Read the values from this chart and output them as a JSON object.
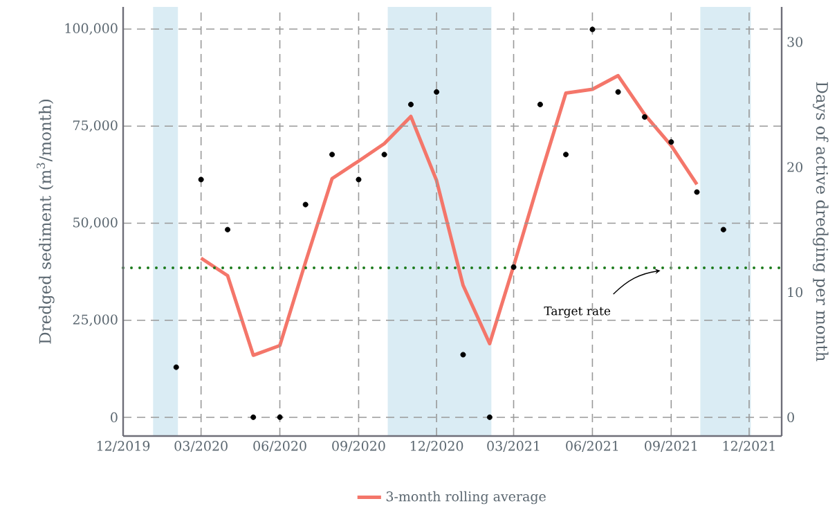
{
  "chart_data": {
    "type": "line",
    "ylabel": "Dredged sediment (m$^{3}$/month)",
    "y2label": "Days of active dredging per month",
    "xlim": [
      "2019-12-01",
      "2022-01-08"
    ],
    "xticks": [
      {
        "value": "2019-12",
        "label": "12/2019"
      },
      {
        "value": "2020-03",
        "label": "03/2020"
      },
      {
        "value": "2020-06",
        "label": "06/2020"
      },
      {
        "value": "2020-09",
        "label": "09/2020"
      },
      {
        "value": "2020-12",
        "label": "12/2020"
      },
      {
        "value": "2021-03",
        "label": "03/2021"
      },
      {
        "value": "2021-06",
        "label": "06/2021"
      },
      {
        "value": "2021-09",
        "label": "09/2021"
      },
      {
        "value": "2021-12",
        "label": "12/2021"
      }
    ],
    "ylim": [
      -4800,
      105700
    ],
    "yticks": [
      0,
      {
        "value": 25000,
        "label": "25,000"
      },
      {
        "value": 50000,
        "label": "50,000"
      },
      {
        "value": 75000,
        "label": "75,000"
      },
      {
        "value": 100000,
        "label": "100,000"
      }
    ],
    "y2lim": [
      -1.5,
      32.8
    ],
    "y2ticks": [
      0,
      10,
      20,
      30
    ],
    "series": [
      {
        "name": "3-month rolling average",
        "color": "#f4766a",
        "x": [
          "2020-03",
          "2020-04",
          "2020-05",
          "2020-06",
          "2020-07",
          "2020-08",
          "2020-09",
          "2020-10",
          "2020-11",
          "2020-12",
          "2021-01",
          "2021-02",
          "2021-03",
          "2021-04",
          "2021-05",
          "2021-06",
          "2021-07",
          "2021-08",
          "2021-09",
          "2021-10"
        ],
        "values": [
          41000,
          36500,
          16000,
          18500,
          40000,
          61500,
          66000,
          70500,
          77500,
          61000,
          34000,
          19000,
          39000,
          62000,
          83500,
          84500,
          88000,
          78000,
          70000,
          60000
        ]
      },
      {
        "type": "scatter",
        "axis": "y2",
        "color": "#000000",
        "marker": "circle",
        "x": [
          "2020-02",
          "2020-03",
          "2020-04",
          "2020-05",
          "2020-06",
          "2020-07",
          "2020-08",
          "2020-09",
          "2020-10",
          "2020-11",
          "2020-12",
          "2021-01",
          "2021-02",
          "2021-03",
          "2021-04",
          "2021-05",
          "2021-06",
          "2021-07",
          "2021-08",
          "2021-09",
          "2021-10",
          "2021-11"
        ],
        "values": [
          4,
          19,
          15,
          0,
          0,
          17,
          21,
          19,
          21,
          25,
          26,
          5,
          0,
          12,
          25,
          21,
          31,
          26,
          24,
          22,
          18,
          15
        ]
      }
    ],
    "bands": [
      {
        "axis": "x",
        "from": "2020-01-05",
        "to": "2020-02-03",
        "color": "#daecf4"
      },
      {
        "axis": "x",
        "from": "2020-10-05",
        "to": "2021-02-03",
        "color": "#daecf4"
      },
      {
        "axis": "x",
        "from": "2021-10-05",
        "to": "2021-12-03",
        "color": "#daecf4"
      }
    ],
    "ref_lines": [
      {
        "axis": "y",
        "value": 38500,
        "color": "#1a7a1a",
        "line_style": "dotted"
      }
    ],
    "annotations": [
      "Target rate"
    ],
    "grid": true,
    "legend": "bottom"
  }
}
